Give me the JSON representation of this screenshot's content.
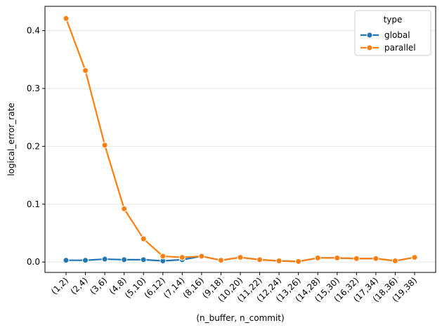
{
  "chart_data": {
    "type": "line",
    "xlabel": "(n_buffer, n_commit)",
    "ylabel": "logical_error_rate",
    "categories": [
      "(1,2)",
      "(2,4)",
      "(3,6)",
      "(4,8)",
      "(5,10)",
      "(6,12)",
      "(7,14)",
      "(8,16)",
      "(9,18)",
      "(10,20)",
      "(11,22)",
      "(12,24)",
      "(13,26)",
      "(14,28)",
      "(15,30)",
      "(16,32)",
      "(17,34)",
      "(18,36)",
      "(19,38)"
    ],
    "ylim": [
      -0.018,
      0.442
    ],
    "yticks": [
      0.0,
      0.1,
      0.2,
      0.3,
      0.4
    ],
    "ytick_labels": [
      "0.0",
      "0.1",
      "0.2",
      "0.3",
      "0.4"
    ],
    "grid": "horizontal",
    "legend": {
      "title": "type",
      "position": "top-right"
    },
    "series": [
      {
        "name": "global",
        "color": "#1f77b4",
        "values": [
          0.003,
          0.003,
          0.005,
          0.004,
          0.004,
          0.002,
          0.004,
          0.01,
          0.003,
          0.008,
          0.004,
          0.002,
          0.001,
          0.007,
          0.007,
          0.006,
          0.006,
          0.002,
          0.008
        ]
      },
      {
        "name": "parallel",
        "color": "#ff7f0e",
        "values": [
          0.421,
          0.331,
          0.202,
          0.092,
          0.04,
          0.01,
          0.008,
          0.01,
          0.003,
          0.008,
          0.004,
          0.002,
          0.001,
          0.007,
          0.007,
          0.006,
          0.006,
          0.002,
          0.008
        ]
      }
    ]
  }
}
